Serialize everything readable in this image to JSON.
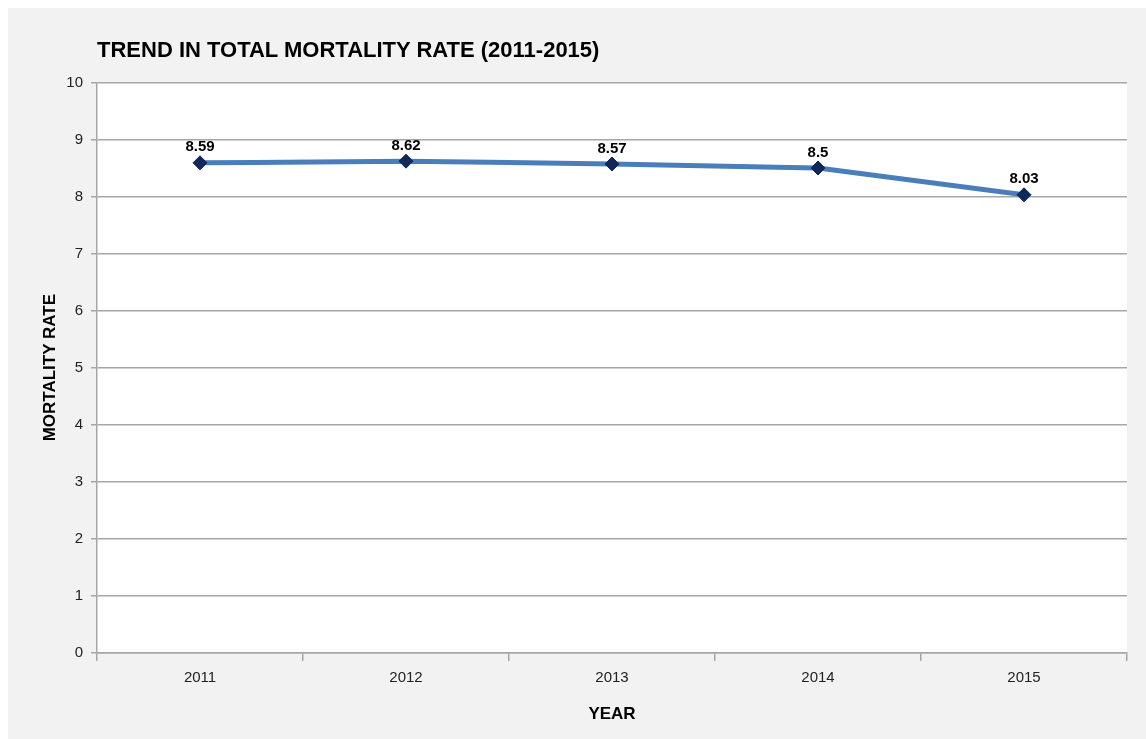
{
  "chart_data": {
    "type": "line",
    "title": "TREND IN TOTAL MORTALITY RATE (2011-2015)",
    "xlabel": "YEAR",
    "ylabel": "MORTALITY RATE",
    "categories": [
      "2011",
      "2012",
      "2013",
      "2014",
      "2015"
    ],
    "series": [
      {
        "color": "#4a7ebb",
        "values": [
          8.59,
          8.62,
          8.57,
          8.5,
          8.03
        ]
      }
    ],
    "ylim": [
      0,
      10
    ],
    "yticks": [
      0,
      1,
      2,
      3,
      4,
      5,
      6,
      7,
      8,
      9,
      10
    ],
    "grid": "y",
    "legend": false,
    "marker": "diamond",
    "data_labels": true
  }
}
